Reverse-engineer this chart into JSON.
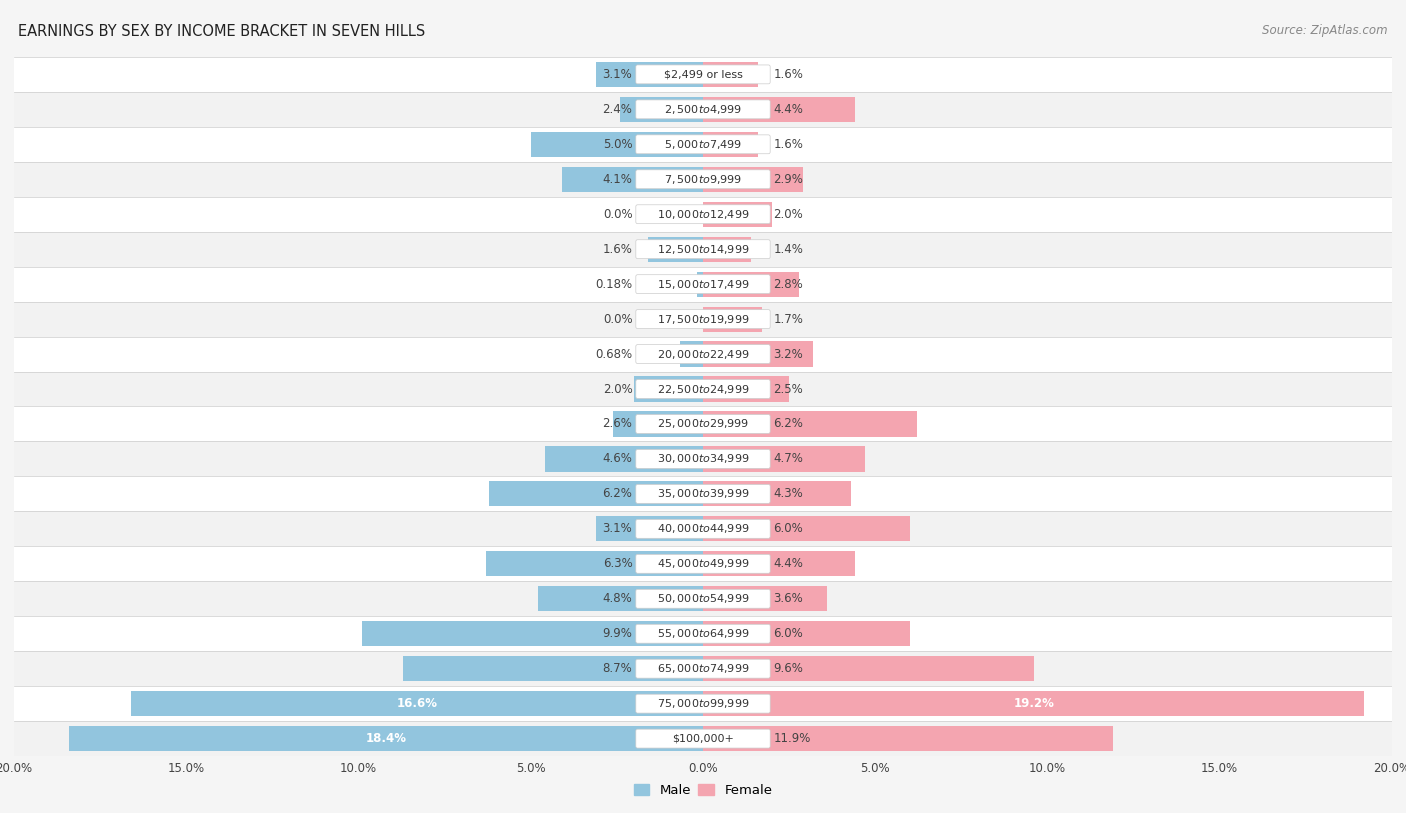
{
  "title": "EARNINGS BY SEX BY INCOME BRACKET IN SEVEN HILLS",
  "source": "Source: ZipAtlas.com",
  "categories": [
    "$2,499 or less",
    "$2,500 to $4,999",
    "$5,000 to $7,499",
    "$7,500 to $9,999",
    "$10,000 to $12,499",
    "$12,500 to $14,999",
    "$15,000 to $17,499",
    "$17,500 to $19,999",
    "$20,000 to $22,499",
    "$22,500 to $24,999",
    "$25,000 to $29,999",
    "$30,000 to $34,999",
    "$35,000 to $39,999",
    "$40,000 to $44,999",
    "$45,000 to $49,999",
    "$50,000 to $54,999",
    "$55,000 to $64,999",
    "$65,000 to $74,999",
    "$75,000 to $99,999",
    "$100,000+"
  ],
  "male_values": [
    3.1,
    2.4,
    5.0,
    4.1,
    0.0,
    1.6,
    0.18,
    0.0,
    0.68,
    2.0,
    2.6,
    4.6,
    6.2,
    3.1,
    6.3,
    4.8,
    9.9,
    8.7,
    16.6,
    18.4
  ],
  "female_values": [
    1.6,
    4.4,
    1.6,
    2.9,
    2.0,
    1.4,
    2.8,
    1.7,
    3.2,
    2.5,
    6.2,
    4.7,
    4.3,
    6.0,
    4.4,
    3.6,
    6.0,
    9.6,
    19.2,
    11.9
  ],
  "male_color": "#92c5de",
  "female_color": "#f4a5b0",
  "row_colors": [
    "#f2f2f2",
    "#ffffff"
  ],
  "background_color": "#f5f5f5",
  "max_value": 20.0,
  "legend_male": "Male",
  "legend_female": "Female",
  "title_fontsize": 10.5,
  "label_fontsize": 8.5,
  "category_fontsize": 8.0,
  "source_fontsize": 8.5,
  "xlabel_fontsize": 8.5
}
